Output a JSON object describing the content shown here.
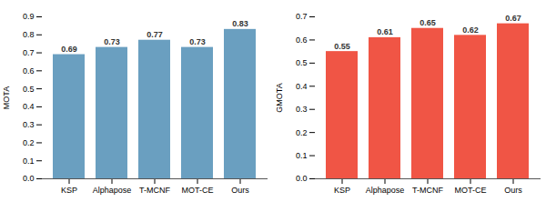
{
  "chart_data": [
    {
      "type": "bar",
      "categories": [
        "KSP",
        "Alphapose",
        "T-MCNF",
        "MOT-CE",
        "Ours"
      ],
      "values": [
        0.69,
        0.73,
        0.77,
        0.73,
        0.83
      ],
      "color": "#6A9FC0",
      "ylabel": "MOTA",
      "ylim": [
        0.0,
        0.9
      ],
      "yticks": [
        {
          "value": 0.0,
          "label": "0.0"
        },
        0.1,
        0.2,
        0.3,
        0.4,
        0.5,
        0.6,
        0.7,
        0.8,
        0.9
      ],
      "grid": false,
      "data_labels": true
    },
    {
      "type": "bar",
      "categories": [
        "KSP",
        "Alphapose",
        "T-MCNF",
        "MOT-CE",
        "Ours"
      ],
      "values": [
        0.55,
        0.61,
        0.65,
        0.62,
        0.67
      ],
      "color": "#F05545",
      "ylabel": "GMOTA",
      "ylim": [
        0.0,
        0.7
      ],
      "yticks": [
        {
          "value": 0.0,
          "label": "0.0"
        },
        0.1,
        0.2,
        0.3,
        0.4,
        0.5,
        0.6,
        0.7
      ],
      "grid": false,
      "data_labels": true
    }
  ]
}
